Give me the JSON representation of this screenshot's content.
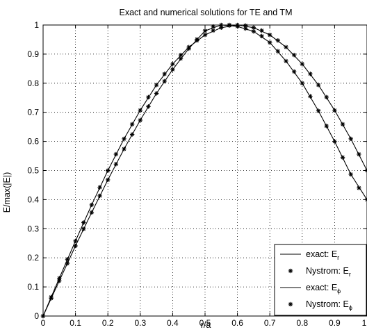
{
  "chart_data": {
    "type": "line",
    "title": "Exact and numerical solutions for TE and TM",
    "xlabel": "r/a",
    "ylabel": "E/max(|E|)",
    "xlim": [
      0,
      1
    ],
    "ylim": [
      0,
      1
    ],
    "xticks": [
      "0",
      "0.1",
      "0.2",
      "0.3",
      "0.4",
      "0.5",
      "0.6",
      "0.7",
      "0.8",
      "0.9",
      "1"
    ],
    "yticks": [
      "0",
      "0.1",
      "0.2",
      "0.3",
      "0.4",
      "0.5",
      "0.6",
      "0.7",
      "0.8",
      "0.9",
      "1"
    ],
    "grid": true,
    "legend_position": "bottom-right",
    "legend": [
      {
        "label": "exact: E",
        "sub": "r",
        "style": "line"
      },
      {
        "label": "Nystrom: E",
        "sub": "r",
        "style": "marker"
      },
      {
        "label": "exact: E",
        "sub": "ϕ",
        "style": "line"
      },
      {
        "label": "Nystrom: E",
        "sub": "ϕ",
        "style": "marker"
      }
    ],
    "series": [
      {
        "name": "exact: Er",
        "style": "line",
        "x": [
          0,
          0.05,
          0.1,
          0.15,
          0.2,
          0.25,
          0.3,
          0.35,
          0.4,
          0.45,
          0.5,
          0.55,
          0.6,
          0.65,
          0.7,
          0.75,
          0.8,
          0.85,
          0.9,
          0.95,
          1.0
        ],
        "y": [
          0,
          0.13,
          0.258,
          0.382,
          0.5,
          0.609,
          0.707,
          0.794,
          0.866,
          0.924,
          0.966,
          0.991,
          1.0,
          0.991,
          0.966,
          0.924,
          0.866,
          0.794,
          0.707,
          0.609,
          0.5
        ]
      },
      {
        "name": "Nystrom: Er",
        "style": "marker",
        "x": [
          0,
          0.025,
          0.05,
          0.075,
          0.1,
          0.125,
          0.15,
          0.175,
          0.2,
          0.225,
          0.25,
          0.275,
          0.3,
          0.325,
          0.35,
          0.375,
          0.4,
          0.425,
          0.45,
          0.475,
          0.5,
          0.525,
          0.55,
          0.575,
          0.6,
          0.625,
          0.65,
          0.675,
          0.7,
          0.725,
          0.75,
          0.775,
          0.8,
          0.825,
          0.85,
          0.875,
          0.9,
          0.925,
          0.95,
          0.975,
          1.0
        ],
        "y": [
          0,
          0.065,
          0.13,
          0.195,
          0.258,
          0.321,
          0.382,
          0.442,
          0.5,
          0.556,
          0.609,
          0.659,
          0.707,
          0.752,
          0.794,
          0.832,
          0.866,
          0.897,
          0.924,
          0.947,
          0.966,
          0.981,
          0.991,
          0.998,
          1.0,
          0.998,
          0.991,
          0.981,
          0.966,
          0.947,
          0.924,
          0.897,
          0.866,
          0.832,
          0.794,
          0.752,
          0.707,
          0.659,
          0.609,
          0.556,
          0.5
        ]
      },
      {
        "name": "exact: Eϕ",
        "style": "line",
        "x": [
          0,
          0.05,
          0.1,
          0.15,
          0.2,
          0.25,
          0.3,
          0.35,
          0.4,
          0.45,
          0.5,
          0.55,
          0.6,
          0.65,
          0.7,
          0.75,
          0.8,
          0.85,
          0.9,
          0.95,
          1.0
        ],
        "y": [
          0,
          0.121,
          0.241,
          0.356,
          0.468,
          0.574,
          0.673,
          0.765,
          0.847,
          0.919,
          0.98,
          1.0,
          0.995,
          0.978,
          0.94,
          0.876,
          0.8,
          0.705,
          0.6,
          0.487,
          0.4
        ]
      },
      {
        "name": "Nystrom: Eϕ",
        "style": "marker",
        "x": [
          0,
          0.025,
          0.05,
          0.075,
          0.1,
          0.125,
          0.15,
          0.175,
          0.2,
          0.225,
          0.25,
          0.275,
          0.3,
          0.325,
          0.35,
          0.375,
          0.4,
          0.425,
          0.45,
          0.475,
          0.5,
          0.525,
          0.55,
          0.575,
          0.6,
          0.625,
          0.65,
          0.675,
          0.7,
          0.725,
          0.75,
          0.775,
          0.8,
          0.825,
          0.85,
          0.875,
          0.9,
          0.925,
          0.95,
          0.975,
          1.0
        ],
        "y": [
          0,
          0.061,
          0.121,
          0.181,
          0.241,
          0.299,
          0.356,
          0.413,
          0.468,
          0.522,
          0.574,
          0.624,
          0.673,
          0.72,
          0.765,
          0.807,
          0.847,
          0.885,
          0.919,
          0.951,
          0.98,
          0.995,
          1.0,
          1.0,
          0.995,
          0.988,
          0.978,
          0.962,
          0.94,
          0.91,
          0.876,
          0.84,
          0.8,
          0.755,
          0.705,
          0.653,
          0.6,
          0.545,
          0.487,
          0.44,
          0.4
        ]
      }
    ]
  }
}
